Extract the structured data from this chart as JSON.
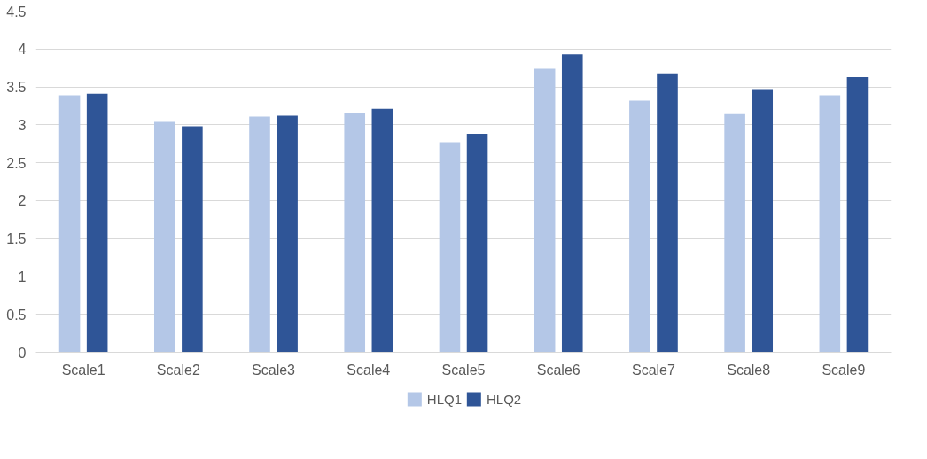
{
  "chart_data": {
    "type": "bar",
    "categories": [
      "Scale1",
      "Scale2",
      "Scale3",
      "Scale4",
      "Scale5",
      "Scale6",
      "Scale7",
      "Scale8",
      "Scale9"
    ],
    "series": [
      {
        "name": "HLQ1",
        "color": "#b4c7e7",
        "values": [
          3.39,
          3.04,
          3.11,
          3.15,
          2.77,
          3.74,
          3.32,
          3.14,
          3.39
        ]
      },
      {
        "name": "HLQ2",
        "color": "#2f5597",
        "values": [
          3.41,
          2.98,
          3.12,
          3.21,
          2.88,
          3.93,
          3.68,
          3.46,
          3.63
        ]
      }
    ],
    "ylim": [
      0,
      4.5
    ],
    "yticks": [
      0,
      0.5,
      1,
      1.5,
      2,
      2.5,
      3,
      3.5,
      4,
      4.5
    ],
    "grid": "y",
    "legend": "bottom"
  }
}
